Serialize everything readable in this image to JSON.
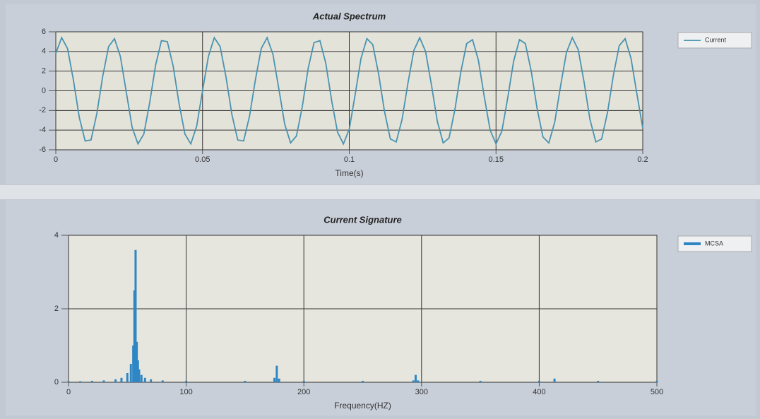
{
  "chart_data": [
    {
      "type": "line",
      "title": "Actual Spectrum",
      "x_label": "Time(s)",
      "x": [
        0,
        0.002,
        0.004,
        0.006,
        0.008,
        0.01,
        0.012,
        0.014,
        0.016,
        0.018,
        0.02,
        0.022,
        0.024,
        0.026,
        0.028,
        0.03,
        0.032,
        0.034,
        0.036,
        0.038,
        0.04,
        0.042,
        0.044,
        0.046,
        0.048,
        0.05,
        0.052,
        0.054,
        0.056,
        0.058,
        0.06,
        0.062,
        0.064,
        0.066,
        0.068,
        0.07,
        0.072,
        0.074,
        0.076,
        0.078,
        0.08,
        0.082,
        0.084,
        0.086,
        0.088,
        0.09,
        0.092,
        0.094,
        0.096,
        0.098,
        0.1,
        0.102,
        0.104,
        0.106,
        0.108,
        0.11,
        0.112,
        0.114,
        0.116,
        0.118,
        0.12,
        0.122,
        0.124,
        0.126,
        0.128,
        0.13,
        0.132,
        0.134,
        0.136,
        0.138,
        0.14,
        0.142,
        0.144,
        0.146,
        0.148,
        0.15,
        0.152,
        0.154,
        0.156,
        0.158,
        0.16,
        0.162,
        0.164,
        0.166,
        0.168,
        0.17,
        0.172,
        0.174,
        0.176,
        0.178,
        0.18,
        0.182,
        0.184,
        0.186,
        0.188,
        0.19,
        0.192,
        0.194,
        0.196,
        0.198,
        0.2
      ],
      "series": [
        {
          "name": "Current",
          "color": "#4a93b0",
          "values": [
            3.8,
            5.4,
            4.3,
            1.1,
            -2.7,
            -5.1,
            -5.0,
            -2.3,
            1.5,
            4.5,
            5.3,
            3.5,
            -0.1,
            -3.7,
            -5.4,
            -4.4,
            -1.2,
            2.6,
            5.1,
            5.0,
            2.5,
            -1.3,
            -4.4,
            -5.4,
            -3.6,
            0,
            3.5,
            5.4,
            4.5,
            1.4,
            -2.4,
            -5.0,
            -5.1,
            -2.6,
            1.1,
            4.3,
            5.4,
            3.7,
            0.2,
            -3.4,
            -5.3,
            -4.6,
            -1.6,
            2.3,
            4.9,
            5.1,
            2.8,
            -1.0,
            -4.2,
            -5.4,
            -3.9,
            -0.4,
            3.3,
            5.3,
            4.7,
            1.7,
            -2.1,
            -4.9,
            -5.2,
            -2.9,
            0.8,
            4.1,
            5.4,
            4.0,
            0.6,
            -3.1,
            -5.3,
            -4.8,
            -1.9,
            1.9,
            4.8,
            5.2,
            3.1,
            -0.6,
            -4.0,
            -5.4,
            -4.1,
            -0.7,
            3.0,
            5.2,
            4.8,
            2.0,
            -1.8,
            -4.7,
            -5.3,
            -3.2,
            0.5,
            3.9,
            5.4,
            4.2,
            0.9,
            -2.9,
            -5.2,
            -4.9,
            -2.2,
            1.6,
            4.6,
            5.3,
            3.3,
            -0.3,
            -3.8
          ]
        }
      ],
      "xlim": [
        0,
        0.2
      ],
      "xticks": [
        0,
        0.05,
        0.1,
        0.15,
        0.2
      ],
      "ylim": [
        -6,
        6
      ],
      "yticks": [
        -6,
        -4,
        -2,
        0,
        2,
        4,
        6
      ],
      "grid": true,
      "legend": "right"
    },
    {
      "type": "bar",
      "title": "Current Signature",
      "x_label": "Frequency(HZ)",
      "x": [
        0,
        10,
        20,
        30,
        40,
        45,
        50,
        53,
        55,
        56,
        57,
        58,
        59,
        60,
        62,
        65,
        70,
        80,
        100,
        150,
        175,
        177,
        179,
        200,
        250,
        293,
        295,
        297,
        350,
        400,
        413,
        450,
        500
      ],
      "series": [
        {
          "name": "MCSA",
          "color": "#2f86c4",
          "values": [
            0.03,
            0.03,
            0.04,
            0.05,
            0.08,
            0.12,
            0.25,
            0.5,
            1.0,
            2.5,
            3.6,
            1.1,
            0.6,
            0.35,
            0.2,
            0.12,
            0.08,
            0.05,
            0.04,
            0.04,
            0.12,
            0.45,
            0.1,
            0.04,
            0.04,
            0.05,
            0.2,
            0.05,
            0.04,
            0.04,
            0.1,
            0.04,
            0.04
          ]
        }
      ],
      "xlim": [
        0,
        500
      ],
      "xticks": [
        0,
        100,
        200,
        300,
        400,
        500
      ],
      "ylim": [
        0,
        4
      ],
      "yticks": [
        0,
        2,
        4
      ],
      "grid": true,
      "legend": "right"
    }
  ]
}
